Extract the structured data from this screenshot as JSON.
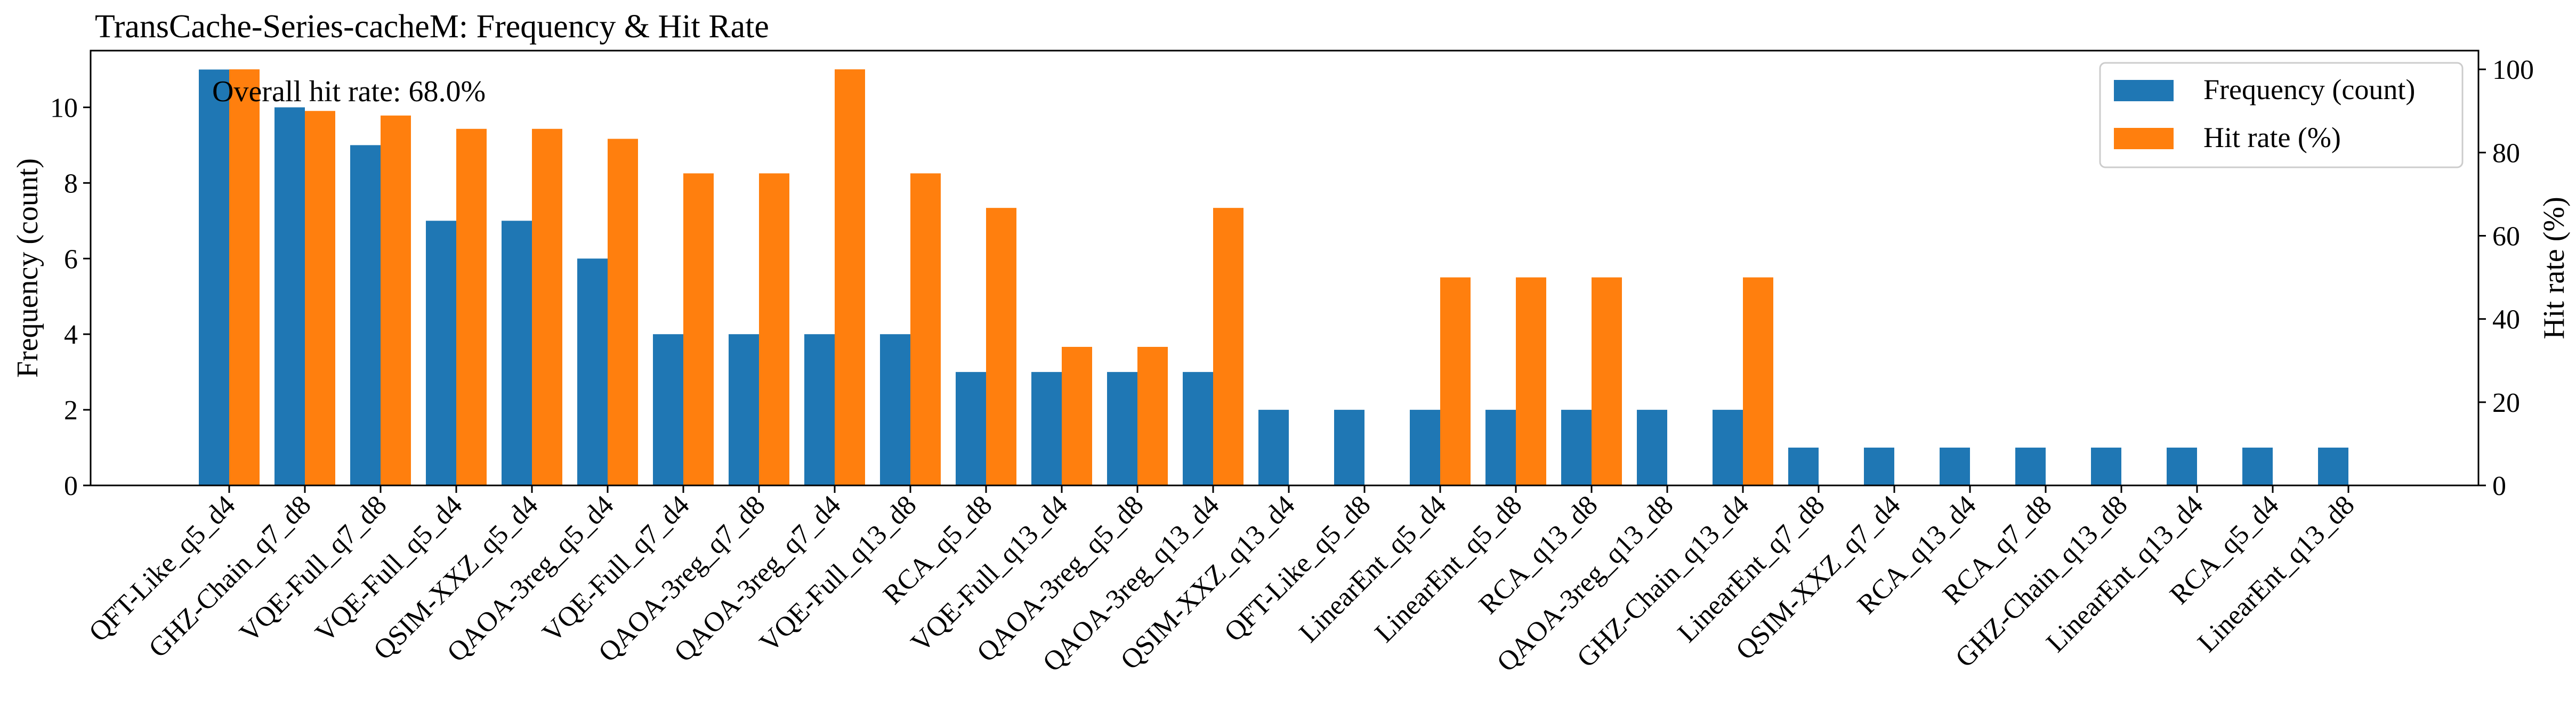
{
  "chart_data": {
    "type": "bar",
    "title": "TransCache-Series-cacheM: Frequency & Hit Rate",
    "annotation": "Overall hit rate: 68.0%",
    "ylabel": "Frequency (count)",
    "y2label": "Hit rate (%)",
    "ylim": [
      0,
      11.5
    ],
    "y2lim": [
      0,
      104.5
    ],
    "yticks": [
      0,
      2,
      4,
      6,
      8,
      10
    ],
    "y2ticks": [
      0,
      20,
      40,
      60,
      80,
      100
    ],
    "legend_position": "top-right",
    "grid": false,
    "categories": [
      "QFT-Like_q5_d4",
      "GHZ-Chain_q7_d8",
      "VQE-Full_q7_d8",
      "VQE-Full_q5_d4",
      "QSIM-XXZ_q5_d4",
      "QAOA-3reg_q5_d4",
      "VQE-Full_q7_d4",
      "QAOA-3reg_q7_d8",
      "QAOA-3reg_q7_d4",
      "VQE-Full_q13_d8",
      "RCA_q5_d8",
      "VQE-Full_q13_d4",
      "QAOA-3reg_q5_d8",
      "QAOA-3reg_q13_d4",
      "QSIM-XXZ_q13_d4",
      "QFT-Like_q5_d8",
      "LinearEnt_q5_d4",
      "LinearEnt_q5_d8",
      "RCA_q13_d8",
      "QAOA-3reg_q13_d8",
      "GHZ-Chain_q13_d4",
      "LinearEnt_q7_d8",
      "QSIM-XXZ_q7_d4",
      "RCA_q13_d4",
      "RCA_q7_d8",
      "GHZ-Chain_q13_d8",
      "LinearEnt_q13_d4",
      "RCA_q5_d4",
      "LinearEnt_q13_d8"
    ],
    "series": [
      {
        "name": "Frequency (count)",
        "axis": "left",
        "color": "#1f77b4",
        "values": [
          11,
          10,
          9,
          7,
          7,
          6,
          4,
          4,
          4,
          4,
          3,
          3,
          3,
          3,
          2,
          2,
          2,
          2,
          2,
          2,
          2,
          1,
          1,
          1,
          1,
          1,
          1,
          1,
          1
        ]
      },
      {
        "name": "Hit rate (%)",
        "axis": "right",
        "color": "#ff7f0e",
        "values": [
          100,
          90,
          88.9,
          85.7,
          85.7,
          83.3,
          75,
          75,
          100,
          75,
          66.7,
          33.3,
          33.3,
          66.7,
          0,
          0,
          50,
          50,
          50,
          0,
          50,
          0,
          0,
          0,
          0,
          0,
          0,
          0,
          0
        ]
      }
    ]
  }
}
